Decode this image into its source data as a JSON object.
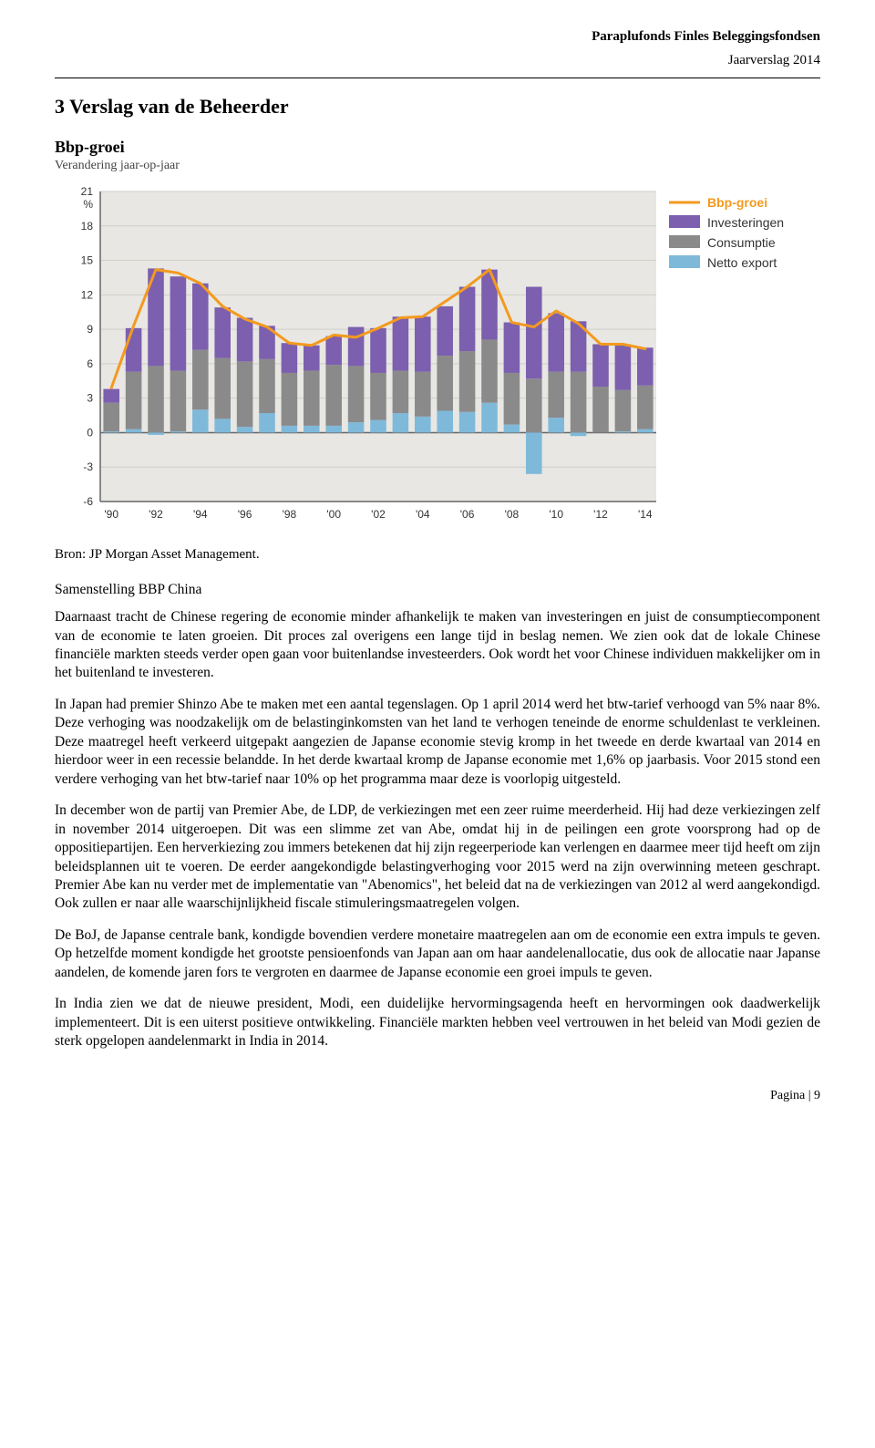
{
  "header": {
    "title": "Paraplufonds Finles Beleggingsfondsen",
    "subtitle": "Jaarverslag 2014"
  },
  "section_title": "3 Verslag van de Beheerder",
  "chart": {
    "type": "stacked-bar-with-line",
    "title": "Bbp-groei",
    "subtitle": "Verandering jaar-op-jaar",
    "y_unit": "%",
    "ylim": [
      -6,
      21
    ],
    "yticks": [
      -6,
      -3,
      0,
      3,
      6,
      9,
      12,
      15,
      18,
      21
    ],
    "x_labels": [
      "'90",
      "'92",
      "'94",
      "'96",
      "'98",
      "'00",
      "'02",
      "'04",
      "'06",
      "'08",
      "'10",
      "'12",
      "'14"
    ],
    "x_indices": [
      0,
      2,
      4,
      6,
      8,
      10,
      12,
      14,
      16,
      18,
      20,
      22,
      24
    ],
    "background_color": "#e8e7e3",
    "grid_color": "#cfcec9",
    "axis_color": "#666666",
    "label_fontsize": 12,
    "line_color": "#f39a1f",
    "line_width": 3,
    "legend": {
      "items": [
        {
          "label": "Bbp-groei",
          "color": "#f39a1f",
          "type": "line"
        },
        {
          "label": "Investeringen",
          "color": "#7c5fae",
          "type": "box"
        },
        {
          "label": "Consumptie",
          "color": "#8a8a8a",
          "type": "box"
        },
        {
          "label": "Netto export",
          "color": "#7fb9da",
          "type": "box"
        }
      ]
    },
    "bars": [
      {
        "x": 0,
        "inv": 1.2,
        "con": 2.5,
        "net": 0.1
      },
      {
        "x": 1,
        "inv": 3.8,
        "con": 5.0,
        "net": 0.3
      },
      {
        "x": 2,
        "inv": 8.5,
        "con": 5.8,
        "net": -0.2
      },
      {
        "x": 3,
        "inv": 8.2,
        "con": 5.3,
        "net": 0.1
      },
      {
        "x": 4,
        "inv": 5.8,
        "con": 5.2,
        "net": 2.0
      },
      {
        "x": 5,
        "inv": 4.4,
        "con": 5.3,
        "net": 1.2
      },
      {
        "x": 6,
        "inv": 3.8,
        "con": 5.7,
        "net": 0.5
      },
      {
        "x": 7,
        "inv": 2.9,
        "con": 4.7,
        "net": 1.7
      },
      {
        "x": 8,
        "inv": 2.6,
        "con": 4.6,
        "net": 0.6
      },
      {
        "x": 9,
        "inv": 2.2,
        "con": 4.8,
        "net": 0.6
      },
      {
        "x": 10,
        "inv": 2.5,
        "con": 5.3,
        "net": 0.6
      },
      {
        "x": 11,
        "inv": 3.4,
        "con": 4.9,
        "net": 0.9
      },
      {
        "x": 12,
        "inv": 3.9,
        "con": 4.1,
        "net": 1.1
      },
      {
        "x": 13,
        "inv": 4.7,
        "con": 3.7,
        "net": 1.7
      },
      {
        "x": 14,
        "inv": 4.8,
        "con": 3.9,
        "net": 1.4
      },
      {
        "x": 15,
        "inv": 4.3,
        "con": 4.8,
        "net": 1.9
      },
      {
        "x": 16,
        "inv": 5.6,
        "con": 5.3,
        "net": 1.8
      },
      {
        "x": 17,
        "inv": 6.1,
        "con": 5.5,
        "net": 2.6
      },
      {
        "x": 18,
        "inv": 4.4,
        "con": 4.5,
        "net": 0.7
      },
      {
        "x": 19,
        "inv": 8.0,
        "con": 4.7,
        "net": -3.6
      },
      {
        "x": 20,
        "inv": 5.1,
        "con": 4.0,
        "net": 1.3
      },
      {
        "x": 21,
        "inv": 4.4,
        "con": 5.3,
        "net": -0.3
      },
      {
        "x": 22,
        "inv": 3.7,
        "con": 4.0,
        "net": 0.0
      },
      {
        "x": 23,
        "inv": 4.0,
        "con": 3.6,
        "net": 0.1
      },
      {
        "x": 24,
        "inv": 3.3,
        "con": 3.8,
        "net": 0.3
      }
    ],
    "line": [
      {
        "x": 0,
        "y": 3.9
      },
      {
        "x": 1,
        "y": 9.3
      },
      {
        "x": 2,
        "y": 14.2
      },
      {
        "x": 3,
        "y": 13.9
      },
      {
        "x": 4,
        "y": 13.0
      },
      {
        "x": 5,
        "y": 11.0
      },
      {
        "x": 6,
        "y": 9.9
      },
      {
        "x": 7,
        "y": 9.2
      },
      {
        "x": 8,
        "y": 7.8
      },
      {
        "x": 9,
        "y": 7.6
      },
      {
        "x": 10,
        "y": 8.5
      },
      {
        "x": 11,
        "y": 8.3
      },
      {
        "x": 12,
        "y": 9.1
      },
      {
        "x": 13,
        "y": 10.0
      },
      {
        "x": 14,
        "y": 10.1
      },
      {
        "x": 15,
        "y": 11.4
      },
      {
        "x": 16,
        "y": 12.7
      },
      {
        "x": 17,
        "y": 14.2
      },
      {
        "x": 18,
        "y": 9.6
      },
      {
        "x": 19,
        "y": 9.2
      },
      {
        "x": 20,
        "y": 10.6
      },
      {
        "x": 21,
        "y": 9.5
      },
      {
        "x": 22,
        "y": 7.7
      },
      {
        "x": 23,
        "y": 7.7
      },
      {
        "x": 24,
        "y": 7.3
      }
    ],
    "bar_width": 0.72
  },
  "bron": "Bron: JP Morgan Asset Management.",
  "subheading": "Samenstelling BBP China",
  "paragraphs": [
    "Daarnaast tracht de Chinese regering de economie minder afhankelijk te maken van investeringen en juist de consumptiecomponent van de economie te laten groeien. Dit proces zal overigens een lange tijd in beslag nemen. We zien ook dat de lokale Chinese financiële markten steeds verder open gaan voor buitenlandse investeerders. Ook wordt het voor Chinese individuen makkelijker om in het buitenland te investeren.",
    "In Japan had premier Shinzo Abe te maken met een aantal tegenslagen. Op 1 april 2014 werd het btw-tarief verhoogd van 5% naar 8%. Deze verhoging was noodzakelijk om de belastinginkomsten van het land te verhogen teneinde de enorme schuldenlast te verkleinen. Deze maatregel heeft verkeerd uitgepakt aangezien de Japanse economie stevig kromp in het tweede en derde kwartaal van 2014 en hierdoor weer in een recessie belandde. In het derde kwartaal kromp de Japanse economie met 1,6% op jaarbasis. Voor 2015 stond een verdere verhoging van het btw-tarief naar 10% op het programma maar deze is voorlopig uitgesteld.",
    "In december won de partij van Premier Abe, de LDP, de verkiezingen met een zeer ruime meerderheid. Hij had deze verkiezingen zelf in november 2014 uitgeroepen. Dit was een slimme zet van Abe, omdat hij in de peilingen een grote voorsprong had op de oppositiepartijen. Een herverkiezing zou immers betekenen dat hij zijn regeerperiode kan verlengen en daarmee meer tijd heeft om zijn beleidsplannen uit te voeren. De eerder aangekondigde belastingverhoging voor 2015 werd na zijn overwinning meteen geschrapt. Premier Abe kan nu verder met de implementatie van \"Abenomics\", het beleid dat na de verkiezingen van 2012 al werd aangekondigd. Ook zullen er naar alle waarschijnlijkheid fiscale stimuleringsmaatregelen volgen.",
    "De BoJ, de Japanse centrale bank, kondigde bovendien verdere monetaire maatregelen aan om de economie een extra impuls te geven. Op hetzelfde moment kondigde het grootste pensioenfonds van Japan aan om haar aandelenallocatie, dus ook de allocatie naar Japanse aandelen, de komende jaren fors te vergroten en daarmee de Japanse economie een groei impuls te geven.",
    "In India zien we dat de nieuwe president, Modi, een duidelijke hervormingsagenda heeft en hervormingen ook daadwerkelijk implementeert. Dit is een uiterst positieve ontwikkeling. Financiële markten hebben veel vertrouwen in het beleid van Modi gezien de sterk opgelopen aandelenmarkt in India in 2014."
  ],
  "footer": "Pagina | 9"
}
